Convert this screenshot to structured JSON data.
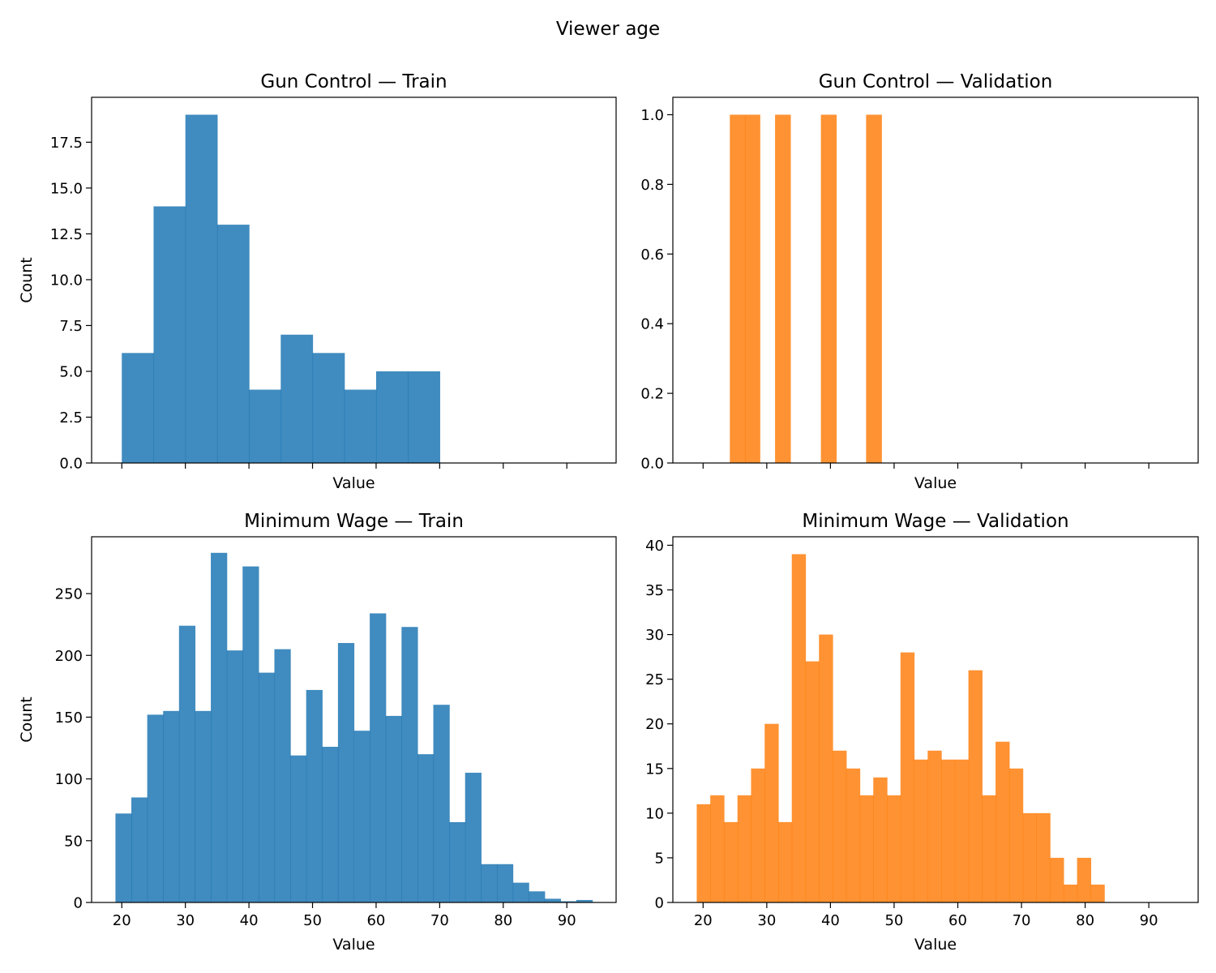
{
  "figure": {
    "suptitle": "Viewer age"
  },
  "chart_data": [
    {
      "type": "bar",
      "histogram": true,
      "title": "Gun Control — Train",
      "xlabel": "Value",
      "ylabel": "Count",
      "color": "#1f77b4",
      "opacity": 0.85,
      "xlim": [
        15.25,
        97.75
      ],
      "ylim": [
        0,
        19.95
      ],
      "xticks": [
        20,
        30,
        40,
        50,
        60,
        70,
        80,
        90
      ],
      "show_xtick_labels": false,
      "yticks": [
        0.0,
        2.5,
        5.0,
        7.5,
        10.0,
        12.5,
        15.0,
        17.5
      ],
      "ytick_labels": [
        "0.0",
        "2.5",
        "5.0",
        "7.5",
        "10.0",
        "12.5",
        "15.0",
        "17.5"
      ],
      "bin_edges": [
        20,
        25,
        30,
        35,
        40,
        45,
        50,
        55,
        60,
        65,
        70
      ],
      "values": [
        6,
        14,
        19,
        13,
        4,
        7,
        6,
        4,
        5,
        5
      ]
    },
    {
      "type": "bar",
      "histogram": true,
      "title": "Gun Control — Validation",
      "xlabel": "Value",
      "ylabel": "",
      "color": "#ff7f0e",
      "opacity": 0.85,
      "xlim": [
        15.25,
        97.75
      ],
      "ylim": [
        0,
        1.05
      ],
      "xticks": [
        20,
        30,
        40,
        50,
        60,
        70,
        80,
        90
      ],
      "show_xtick_labels": false,
      "yticks": [
        0.0,
        0.2,
        0.4,
        0.6,
        0.8,
        1.0
      ],
      "ytick_labels": [
        "0.0",
        "0.2",
        "0.4",
        "0.6",
        "0.8",
        "1.0"
      ],
      "bin_edges": [
        24.2,
        26.6,
        28.9,
        31.3,
        33.7,
        36.1,
        38.5,
        40.9,
        43.3,
        45.6,
        48.0
      ],
      "values": [
        1,
        1,
        0,
        1,
        0,
        0,
        1,
        0,
        0,
        1
      ]
    },
    {
      "type": "bar",
      "histogram": true,
      "title": "Minimum Wage — Train",
      "xlabel": "Value",
      "ylabel": "Count",
      "color": "#1f77b4",
      "opacity": 0.85,
      "xlim": [
        15.25,
        97.75
      ],
      "ylim": [
        0,
        296
      ],
      "xticks": [
        20,
        30,
        40,
        50,
        60,
        70,
        80,
        90
      ],
      "xtick_labels": [
        "20",
        "30",
        "40",
        "50",
        "60",
        "70",
        "80",
        "90"
      ],
      "show_xtick_labels": true,
      "yticks": [
        0,
        50,
        100,
        150,
        200,
        250
      ],
      "ytick_labels": [
        "0",
        "50",
        "100",
        "150",
        "200",
        "250"
      ],
      "bin_edges": [
        19,
        21.5,
        24,
        26.5,
        29,
        31.5,
        34,
        36.5,
        39,
        41.5,
        44,
        46.5,
        49,
        51.5,
        54,
        56.5,
        59,
        61.5,
        64,
        66.5,
        69,
        71.5,
        74,
        76.5,
        79,
        81.5,
        84,
        86.5,
        89,
        91.5,
        94
      ],
      "values": [
        72,
        85,
        152,
        155,
        224,
        155,
        283,
        204,
        272,
        186,
        205,
        119,
        172,
        126,
        210,
        139,
        234,
        151,
        223,
        120,
        160,
        65,
        105,
        31,
        31,
        16,
        9,
        3,
        1,
        2
      ]
    },
    {
      "type": "bar",
      "histogram": true,
      "title": "Minimum Wage — Validation",
      "xlabel": "Value",
      "ylabel": "",
      "color": "#ff7f0e",
      "opacity": 0.85,
      "xlim": [
        15.25,
        97.75
      ],
      "ylim": [
        0,
        40.95
      ],
      "xticks": [
        20,
        30,
        40,
        50,
        60,
        70,
        80,
        90
      ],
      "xtick_labels": [
        "20",
        "30",
        "40",
        "50",
        "60",
        "70",
        "80",
        "90"
      ],
      "show_xtick_labels": true,
      "yticks": [
        0,
        5,
        10,
        15,
        20,
        25,
        30,
        35,
        40
      ],
      "ytick_labels": [
        "0",
        "5",
        "10",
        "15",
        "20",
        "25",
        "30",
        "35",
        "40"
      ],
      "bin_edges": [
        19,
        21.13,
        23.27,
        25.4,
        27.53,
        29.67,
        31.8,
        33.93,
        36.07,
        38.2,
        40.33,
        42.47,
        44.6,
        46.73,
        48.87,
        51,
        53.13,
        55.27,
        57.4,
        59.53,
        61.67,
        63.8,
        65.93,
        68.07,
        70.2,
        72.33,
        74.47,
        76.6,
        78.73,
        80.87,
        83
      ],
      "values": [
        11,
        12,
        9,
        12,
        15,
        20,
        9,
        39,
        27,
        30,
        17,
        15,
        12,
        14,
        12,
        28,
        16,
        17,
        16,
        16,
        26,
        12,
        18,
        15,
        10,
        10,
        5,
        2,
        5,
        2
      ]
    }
  ]
}
